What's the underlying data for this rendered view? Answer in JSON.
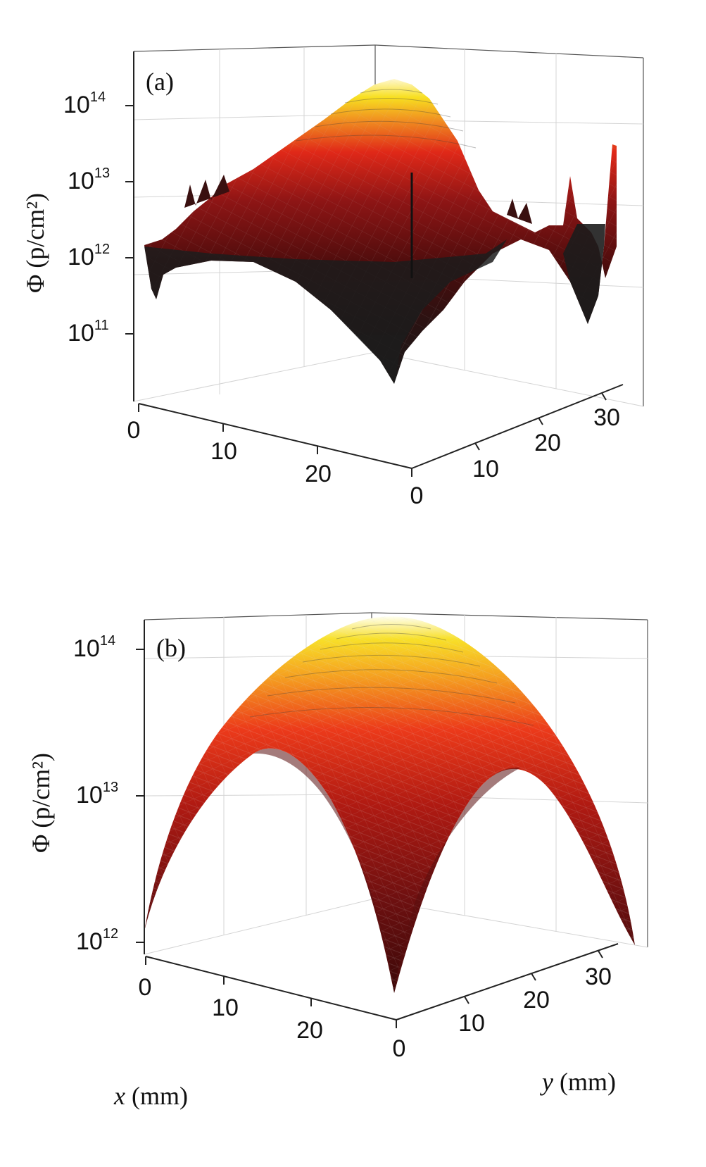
{
  "figure": {
    "domain": "scientific-figure"
  },
  "chart_data": [
    {
      "type": "surface",
      "panel_label": "(a)",
      "zlabel": "Φ (p/cm²)",
      "zscale": "log",
      "zticks": [
        {
          "value": 100000000000.0,
          "label_base": "10",
          "label_exp": "11"
        },
        {
          "value": 1000000000000.0,
          "label_base": "10",
          "label_exp": "12"
        },
        {
          "value": 10000000000000.0,
          "label_base": "10",
          "label_exp": "13"
        },
        {
          "value": 100000000000000.0,
          "label_base": "10",
          "label_exp": "14"
        }
      ],
      "xticks": [
        "0",
        "10",
        "20"
      ],
      "yticks": [
        "0",
        "10",
        "20",
        "30"
      ],
      "xlim": [
        0,
        28
      ],
      "ylim": [
        0,
        33
      ],
      "peak": {
        "x": 14,
        "y": 16,
        "z": 200000000000000.0
      },
      "surface_description_values": {
        "edge_floor": 1000000000000.0,
        "front_corner_min": 20000000000.0,
        "right_edge_spike": 40000000000000.0
      },
      "colormap": [
        "#1a1a1a",
        "#5a0f0f",
        "#a01818",
        "#e02818",
        "#f08a20",
        "#f8e020",
        "#ffffc8"
      ]
    },
    {
      "type": "surface",
      "panel_label": "(b)",
      "zlabel": "Φ (p/cm²)",
      "zscale": "log",
      "zticks": [
        {
          "value": 1000000000000.0,
          "label_base": "10",
          "label_exp": "12"
        },
        {
          "value": 10000000000000.0,
          "label_base": "10",
          "label_exp": "13"
        },
        {
          "value": 100000000000000.0,
          "label_base": "10",
          "label_exp": "14"
        }
      ],
      "xticks": [
        "0",
        "10",
        "20"
      ],
      "yticks": [
        "0",
        "10",
        "20",
        "30"
      ],
      "xlim": [
        0,
        28
      ],
      "ylim": [
        0,
        33
      ],
      "xlabel_var": "x",
      "xlabel_unit": " (mm)",
      "ylabel_var": "y",
      "ylabel_unit": " (mm)",
      "peak": {
        "x": 14,
        "y": 16,
        "z": 180000000000000.0
      },
      "colormap": [
        "#3a0808",
        "#6e1010",
        "#b01a12",
        "#e8321a",
        "#f28c22",
        "#f8e028",
        "#ffffd0"
      ]
    }
  ]
}
